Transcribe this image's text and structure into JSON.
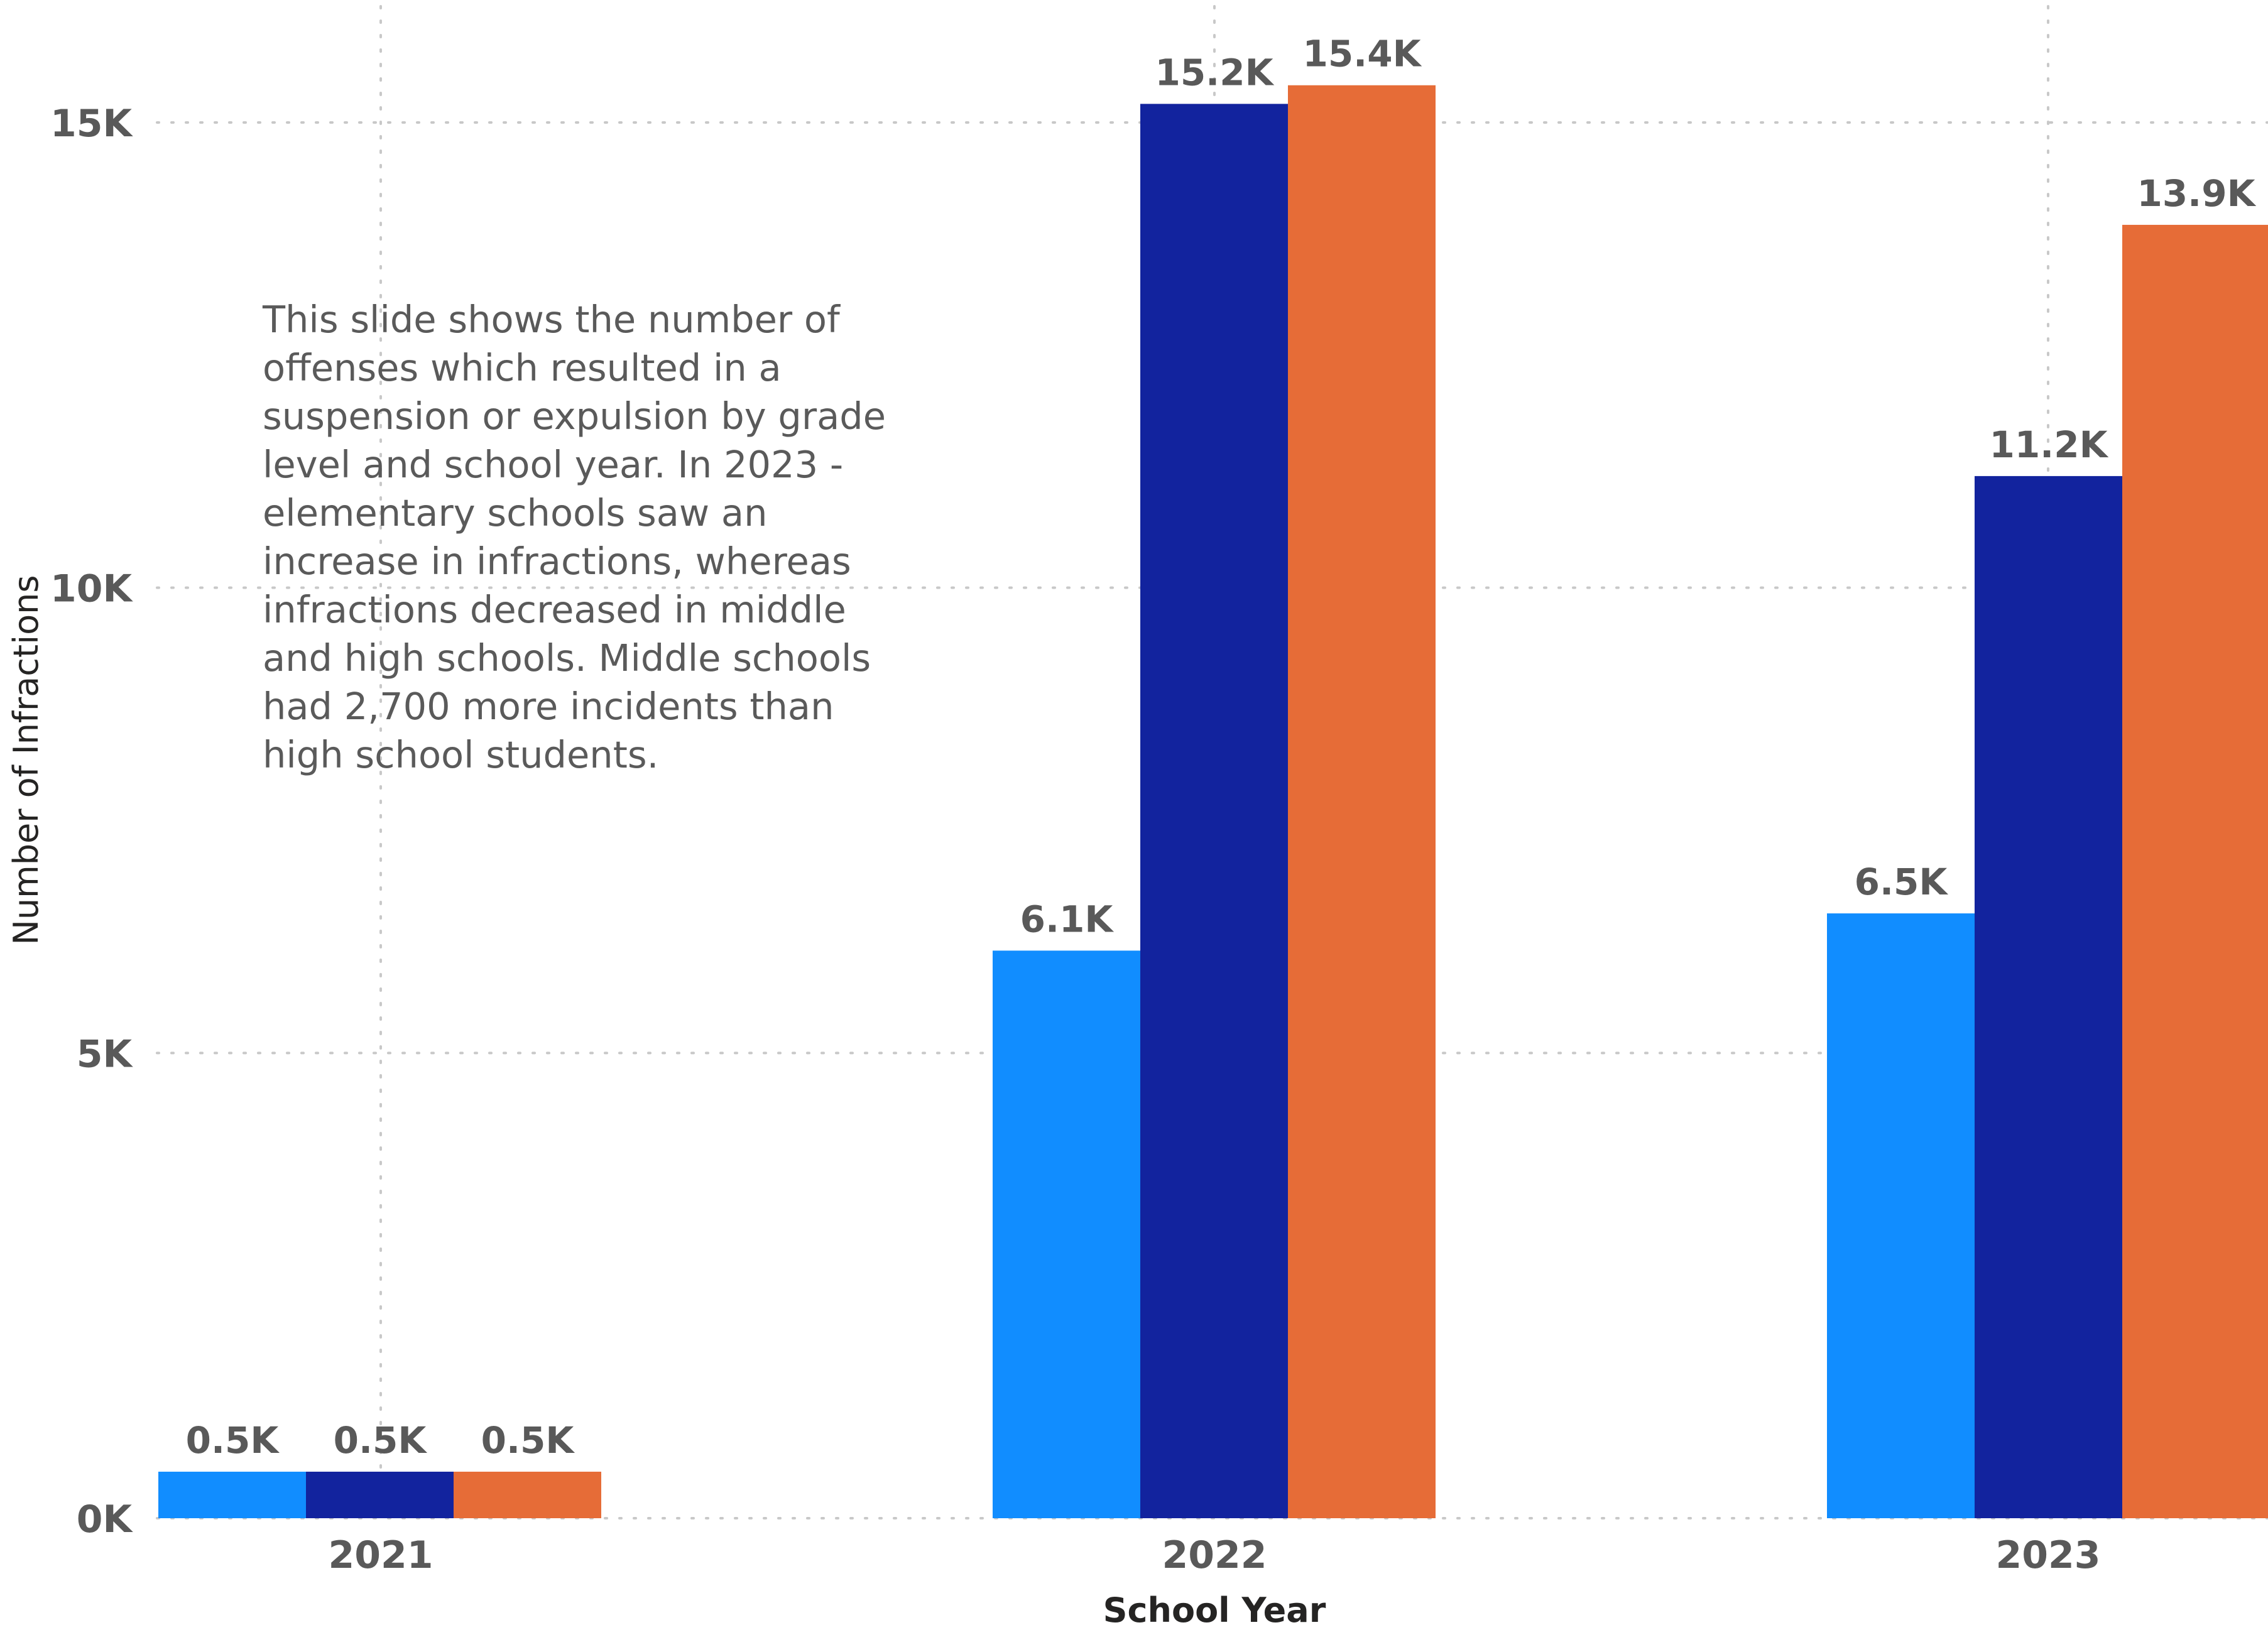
{
  "chart_data": {
    "type": "bar",
    "categories": [
      "2021",
      "2022",
      "2023"
    ],
    "series": [
      {
        "values": [
          0.5,
          6.1,
          6.5
        ],
        "labels": [
          "0.5K",
          "6.1K",
          "6.5K"
        ],
        "color": "#118DFF"
      },
      {
        "values": [
          0.5,
          15.2,
          11.2
        ],
        "labels": [
          "0.5K",
          "15.2K",
          "11.2K"
        ],
        "color": "#12239E"
      },
      {
        "values": [
          0.5,
          15.4,
          13.9
        ],
        "labels": [
          "0.5K",
          "15.4K",
          "13.9K"
        ],
        "color": "#E66C37"
      }
    ],
    "xlabel": "School Year",
    "ylabel": "Number of Infractions",
    "ylim": [
      0,
      16
    ],
    "yticks": [
      0,
      5,
      10,
      15
    ],
    "ytick_labels": [
      "0K",
      "5K",
      "10K",
      "15K"
    ],
    "grid": true,
    "value_unit": "thousands"
  },
  "annotation": "This slide shows the number of offenses which resulted in a suspension or expulsion by grade level and school year. In 2023 - elementary schools saw an increase in infractions, whereas infractions decreased in middle and high schools. Middle schools had 2,700 more incidents than high school students."
}
